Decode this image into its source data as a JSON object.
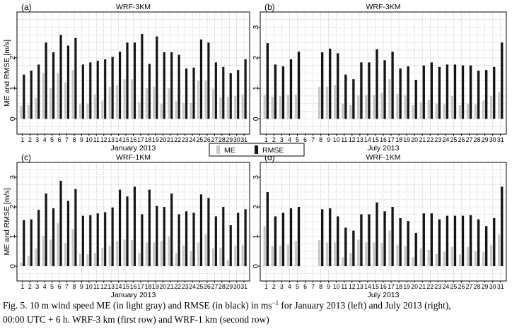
{
  "legend": {
    "items": [
      "ME",
      "RMSE"
    ],
    "colors": [
      "#c8c8c8",
      "#141414"
    ]
  },
  "caption": {
    "l1a": "Fig. 5. 10 m wind speed ME (in light gray) and RMSE (in black) in ms",
    "l1sup": "−1",
    "l1b": " for January 2013 (left) and July 2013 (right),",
    "l2": "00:00 UTC + 6 h. WRF-3 km (first row) and WRF-1 km (second row)"
  },
  "chart_data": [
    {
      "type": "bar",
      "panel_label": "(a)",
      "title": "WRF-3KM",
      "xlabel": "January 2013",
      "ylabel": "ME and RMSE [m/s]",
      "ylim": [
        -0.5,
        3.5
      ],
      "yticks": [
        0,
        1,
        2
      ],
      "categories": [
        "1",
        "2",
        "3",
        "4",
        "5",
        "6",
        "7",
        "8",
        "9",
        "10",
        "11",
        "12",
        "13",
        "14",
        "15",
        "16",
        "17",
        "18",
        "19",
        "20",
        "21",
        "22",
        "23",
        "24",
        "25",
        "26",
        "27",
        "28",
        "29",
        "30",
        "31"
      ],
      "series": [
        {
          "name": "ME",
          "values": [
            0.43,
            0.45,
            0.68,
            1.5,
            1.0,
            1.5,
            1.2,
            1.6,
            0.48,
            0.5,
            0.8,
            0.6,
            1.05,
            1.1,
            1.3,
            1.3,
            0.55,
            1.0,
            1.05,
            0.5,
            1.0,
            0.58,
            0.52,
            0.52,
            1.25,
            1.25,
            0.98,
            0.7,
            0.72,
            0.75,
            0.8
          ]
        },
        {
          "name": "RMSE",
          "values": [
            1.45,
            1.58,
            1.78,
            2.5,
            2.18,
            2.75,
            2.4,
            2.65,
            1.78,
            1.85,
            1.9,
            1.95,
            2.03,
            2.2,
            2.5,
            2.5,
            2.78,
            1.8,
            2.7,
            2.18,
            2.18,
            2.1,
            1.65,
            1.68,
            2.6,
            2.5,
            1.85,
            1.7,
            1.5,
            1.6,
            1.95
          ]
        }
      ]
    },
    {
      "type": "bar",
      "panel_label": "(b)",
      "title": "WRF-3KM",
      "xlabel": "July 2013",
      "ylabel": "",
      "ylim": [
        -0.5,
        3.5
      ],
      "yticks": [
        0,
        1,
        2,
        3
      ],
      "categories": [
        "1",
        "2",
        "3",
        "4",
        "5",
        "6",
        "7",
        "8",
        "9",
        "10",
        "11",
        "12",
        "13",
        "14",
        "15",
        "16",
        "17",
        "18",
        "19",
        "20",
        "21",
        "22",
        "23",
        "24",
        "25",
        "26",
        "27",
        "28",
        "29",
        "30",
        "31"
      ],
      "series": [
        {
          "name": "ME",
          "values": [
            0.78,
            0.72,
            0.75,
            0.78,
            0.8,
            null,
            null,
            1.05,
            1.05,
            1.1,
            0.5,
            0.45,
            0.78,
            0.78,
            0.78,
            0.85,
            1.3,
            0.82,
            0.78,
            0.45,
            0.55,
            0.62,
            0.5,
            0.48,
            0.75,
            0.45,
            0.5,
            0.48,
            0.6,
            0.75,
            0.88
          ]
        },
        {
          "name": "RMSE",
          "values": [
            2.48,
            1.78,
            1.72,
            1.95,
            2.2,
            null,
            null,
            2.18,
            2.3,
            2.15,
            1.45,
            1.3,
            1.85,
            1.85,
            2.28,
            1.92,
            2.2,
            1.65,
            1.72,
            1.28,
            1.75,
            1.85,
            1.7,
            1.78,
            1.78,
            1.75,
            1.75,
            1.58,
            1.6,
            1.7,
            2.5
          ]
        }
      ]
    },
    {
      "type": "bar",
      "panel_label": "(c)",
      "title": "WRF-1KM",
      "xlabel": "January 2013",
      "ylabel": "ME and RMSE [m/s]",
      "ylim": [
        -0.5,
        3.5
      ],
      "yticks": [
        0,
        1,
        2,
        3
      ],
      "categories": [
        "1",
        "2",
        "3",
        "4",
        "5",
        "6",
        "7",
        "8",
        "9",
        "10",
        "11",
        "12",
        "13",
        "14",
        "15",
        "16",
        "17",
        "18",
        "19",
        "20",
        "21",
        "22",
        "23",
        "24",
        "25",
        "26",
        "27",
        "28",
        "29",
        "30",
        "31"
      ],
      "series": [
        {
          "name": "ME",
          "values": [
            0.12,
            0.35,
            0.6,
            1.02,
            0.9,
            1.45,
            0.78,
            1.25,
            0.42,
            0.4,
            0.45,
            0.62,
            0.7,
            0.85,
            0.9,
            0.88,
            0.45,
            0.8,
            0.8,
            0.85,
            1.0,
            0.45,
            0.7,
            0.5,
            0.8,
            1.08,
            0.6,
            0.62,
            0.2,
            0.7,
            0.72
          ]
        },
        {
          "name": "RMSE",
          "values": [
            1.55,
            1.58,
            1.9,
            2.45,
            1.95,
            2.88,
            2.2,
            2.6,
            1.7,
            1.72,
            1.78,
            1.82,
            1.98,
            2.58,
            2.35,
            2.68,
            1.75,
            2.58,
            2.03,
            2.0,
            2.45,
            1.75,
            1.85,
            1.8,
            2.42,
            2.3,
            1.68,
            2.0,
            1.38,
            1.8,
            1.92
          ]
        }
      ]
    },
    {
      "type": "bar",
      "panel_label": "(d)",
      "title": "WRF-1KM",
      "xlabel": "July 2013",
      "ylabel": "",
      "ylim": [
        -0.5,
        3.5
      ],
      "yticks": [
        0,
        1,
        2,
        3
      ],
      "categories": [
        "1",
        "2",
        "3",
        "4",
        "5",
        "6",
        "7",
        "8",
        "9",
        "10",
        "11",
        "12",
        "13",
        "14",
        "15",
        "16",
        "17",
        "18",
        "19",
        "20",
        "21",
        "22",
        "23",
        "24",
        "25",
        "26",
        "27",
        "28",
        "29",
        "30",
        "31"
      ],
      "series": [
        {
          "name": "ME",
          "values": [
            1.35,
            0.68,
            0.7,
            0.72,
            0.85,
            null,
            null,
            0.88,
            0.8,
            0.8,
            0.3,
            0.45,
            0.9,
            0.8,
            0.8,
            0.78,
            1.2,
            0.72,
            0.68,
            0.3,
            0.6,
            0.55,
            0.42,
            0.48,
            0.65,
            0.4,
            0.65,
            0.5,
            0.48,
            0.72,
            1.08
          ]
        },
        {
          "name": "RMSE",
          "values": [
            2.5,
            1.68,
            1.8,
            1.95,
            2.0,
            null,
            null,
            1.92,
            1.95,
            1.68,
            1.3,
            1.2,
            1.75,
            1.75,
            2.15,
            1.85,
            2.0,
            1.62,
            1.52,
            1.12,
            1.78,
            1.78,
            1.58,
            1.7,
            1.7,
            1.7,
            1.72,
            1.58,
            1.35,
            1.62,
            2.68
          ]
        }
      ]
    }
  ]
}
